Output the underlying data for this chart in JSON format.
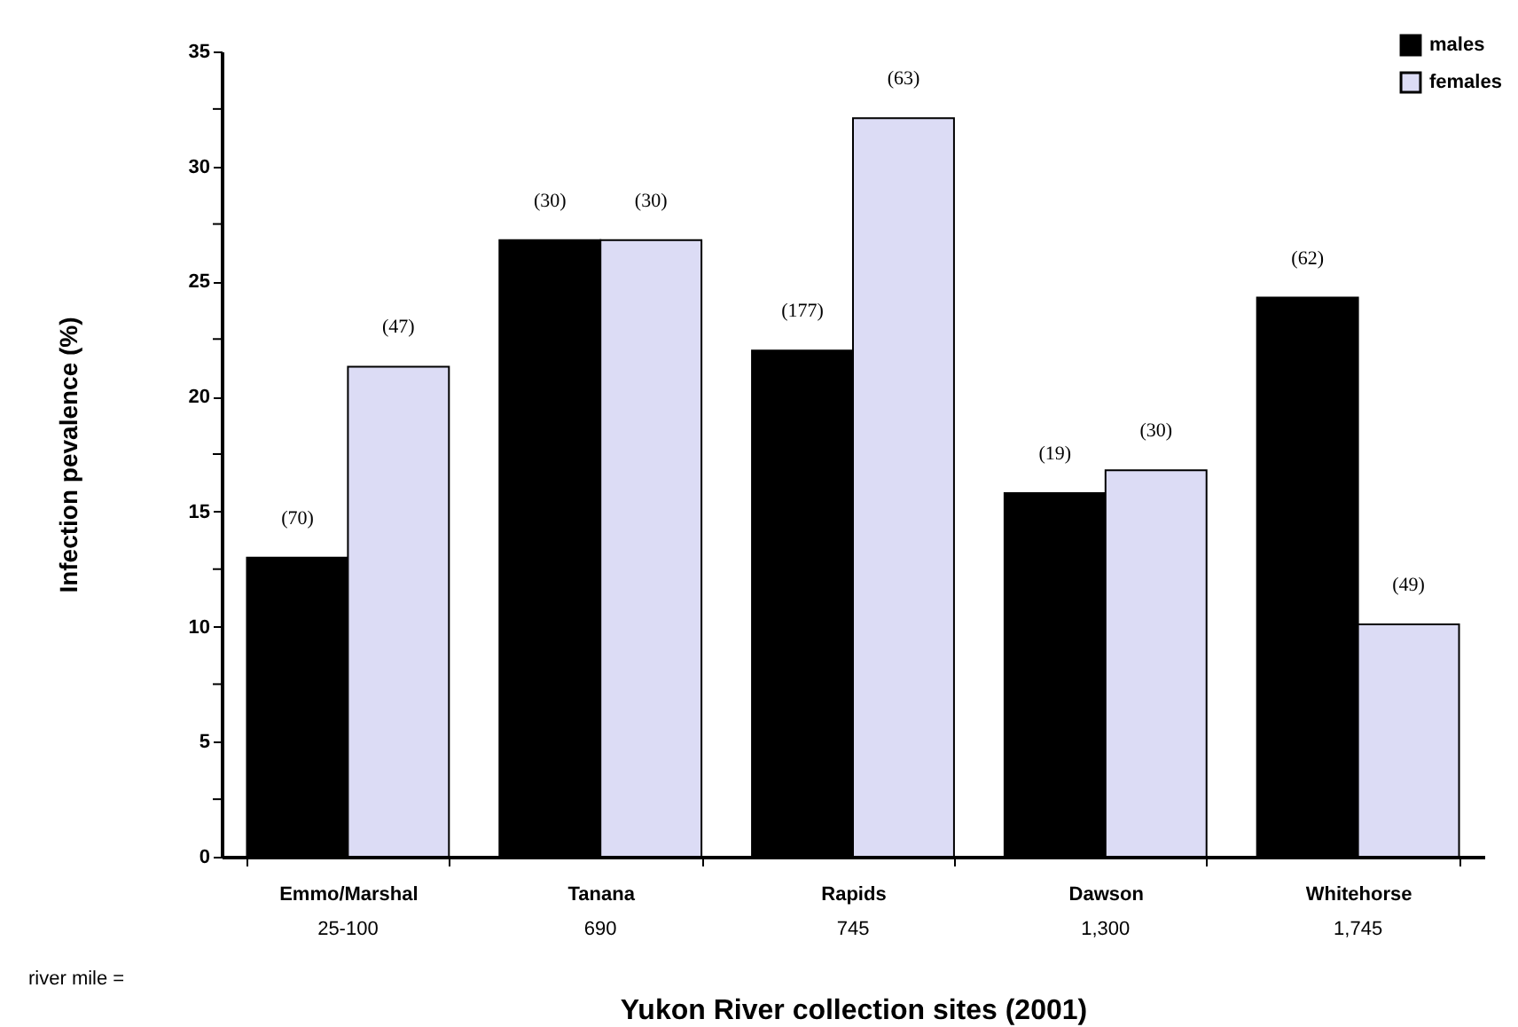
{
  "chart_data": {
    "type": "bar",
    "xlabel": "Yukon River collection sites (2001)",
    "ylabel": "Infection pevalence (%)",
    "categories": [
      "Emmo/Marshal",
      "Tanana",
      "Rapids",
      "Dawson",
      "Whitehorse"
    ],
    "series": [
      {
        "name": "males",
        "color": "#000000",
        "values": [
          13.0,
          26.8,
          22.0,
          15.8,
          24.3
        ]
      },
      {
        "name": "females",
        "color": "#dcdcf5",
        "values": [
          21.3,
          26.8,
          32.1,
          16.8,
          10.1
        ]
      }
    ],
    "ylim": [
      0,
      35
    ],
    "yticks": [
      0,
      {
        "value": 2.5,
        "label": null
      },
      5,
      {
        "value": 7.5,
        "label": null
      },
      10,
      {
        "value": 12.5,
        "label": null
      },
      15,
      {
        "value": 17.5,
        "label": null
      },
      20,
      {
        "value": 22.5,
        "label": null
      },
      25,
      {
        "value": 27.5,
        "label": null
      },
      30,
      {
        "value": 32.5,
        "label": null
      },
      35
    ],
    "grid": false,
    "legend": "top right",
    "annotations": [
      "river mile =",
      "25-100",
      "690",
      "745",
      "1,300",
      "1,745",
      {
        "text": "(70)",
        "x": "Emmo/Marshal",
        "y": 13.0
      },
      {
        "text": "(47)",
        "x": "Emmo/Marshal",
        "y": 21.3
      },
      {
        "text": "(30)",
        "x": "Tanana",
        "y": 26.8
      },
      {
        "text": "(30)",
        "x": "Tanana",
        "y": 26.8
      },
      {
        "text": "(177)",
        "x": "Rapids",
        "y": 22.0
      },
      {
        "text": "(63)",
        "x": "Rapids",
        "y": 32.1
      },
      {
        "text": "(19)",
        "x": "Dawson",
        "y": 15.8
      },
      {
        "text": "(30)",
        "x": "Dawson",
        "y": 16.8
      },
      {
        "text": "(62)",
        "x": "Whitehorse",
        "y": 24.3
      },
      {
        "text": "(49)",
        "x": "Whitehorse",
        "y": 10.1
      }
    ]
  }
}
